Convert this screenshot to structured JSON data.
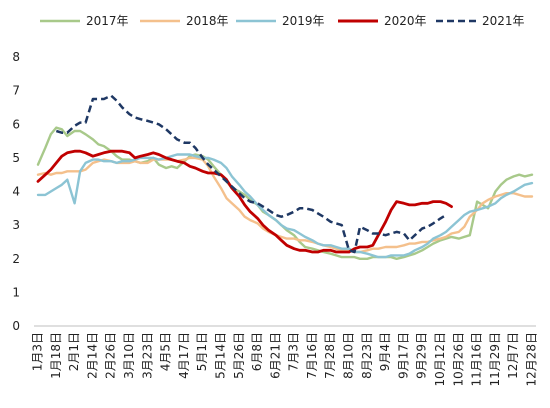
{
  "chart_data": {
    "type": "line",
    "title": "",
    "xlabel": "",
    "ylabel": "",
    "ylim": [
      0,
      8
    ],
    "yticks": [
      "0",
      "1",
      "2",
      "3",
      "4",
      "5",
      "6",
      "7",
      "8"
    ],
    "grid": false,
    "legend_position": "top",
    "categories": [
      "1月3日",
      "1月18日",
      "2月1日",
      "2月14日",
      "2月26日",
      "3月10日",
      "3月23日",
      "4月5日",
      "4月17日",
      "5月1日",
      "5月14日",
      "5月26日",
      "6月8日",
      "6月21日",
      "7月3日",
      "7月16日",
      "7月28日",
      "8月10日",
      "8月23日",
      "9月4日",
      "9月17日",
      "9月29日",
      "10月12日",
      "10月26日",
      "11月16日",
      "11月29日",
      "12月7日",
      "12月28日"
    ],
    "series": [
      {
        "name": "2017年",
        "color": "#a8c98a",
        "dash": false,
        "x": [
          0,
          0.4,
          0.7,
          1.0,
          1.3,
          1.6,
          2.0,
          2.3,
          2.6,
          3.0,
          3.3,
          3.6,
          4.0,
          4.3,
          4.6,
          5.0,
          5.3,
          5.6,
          6.0,
          6.3,
          6.6,
          7.0,
          7.3,
          7.6,
          8.0,
          8.3,
          8.6,
          9.0,
          9.3,
          9.6,
          10.0,
          10.3,
          10.6,
          11.0,
          11.3,
          11.6,
          12.0,
          12.3,
          12.6,
          13.0,
          13.3,
          13.6,
          14.0,
          14.3,
          14.6,
          15.0,
          15.3,
          15.6,
          16.0,
          16.3,
          16.6,
          17.0,
          17.3,
          17.6,
          18.0,
          18.3,
          18.6,
          19.0,
          19.3,
          19.6,
          20.0,
          20.3,
          20.6,
          21.0,
          21.3,
          21.6,
          22.0,
          22.3,
          22.6,
          23.0,
          23.3,
          23.6,
          24.0,
          24.3,
          24.6,
          25.0,
          25.3,
          25.6,
          26.0,
          26.3,
          26.6,
          27.0
        ],
        "values": [
          4.8,
          5.3,
          5.7,
          5.9,
          5.85,
          5.65,
          5.8,
          5.8,
          5.7,
          5.55,
          5.4,
          5.35,
          5.2,
          5.05,
          4.95,
          4.95,
          4.9,
          4.85,
          4.9,
          5.0,
          4.8,
          4.7,
          4.75,
          4.7,
          4.9,
          5.05,
          5.1,
          5.05,
          4.95,
          4.75,
          4.5,
          4.3,
          4.1,
          4.0,
          3.9,
          3.75,
          3.6,
          3.4,
          3.3,
          3.15,
          3.0,
          2.85,
          2.7,
          2.5,
          2.35,
          2.3,
          2.25,
          2.2,
          2.15,
          2.1,
          2.05,
          2.05,
          2.05,
          2.0,
          2.0,
          2.05,
          2.05,
          2.05,
          2.05,
          2.0,
          2.05,
          2.1,
          2.15,
          2.25,
          2.35,
          2.45,
          2.55,
          2.6,
          2.65,
          2.6,
          2.65,
          2.7,
          3.7,
          3.6,
          3.5,
          4.0,
          4.2,
          4.35,
          4.45,
          4.5,
          4.45,
          4.5
        ]
      },
      {
        "name": "2018年",
        "color": "#f4c08c",
        "dash": false,
        "x": [
          0,
          0.4,
          0.7,
          1.0,
          1.3,
          1.6,
          2.0,
          2.3,
          2.6,
          3.0,
          3.3,
          3.6,
          4.0,
          4.3,
          4.6,
          5.0,
          5.3,
          5.6,
          6.0,
          6.3,
          6.6,
          7.0,
          7.3,
          7.6,
          8.0,
          8.3,
          8.6,
          9.0,
          9.3,
          9.6,
          10.0,
          10.3,
          10.6,
          11.0,
          11.3,
          11.6,
          12.0,
          12.3,
          12.6,
          13.0,
          13.3,
          13.6,
          14.0,
          14.3,
          14.6,
          15.0,
          15.3,
          15.6,
          16.0,
          16.3,
          16.6,
          17.0,
          17.3,
          17.6,
          18.0,
          18.3,
          18.6,
          19.0,
          19.3,
          19.6,
          20.0,
          20.3,
          20.6,
          21.0,
          21.3,
          21.6,
          22.0,
          22.3,
          22.6,
          23.0,
          23.3,
          23.6,
          24.0,
          24.3,
          24.6,
          25.0,
          25.3,
          25.6,
          26.0,
          26.3,
          26.6,
          27.0
        ],
        "values": [
          4.5,
          4.55,
          4.5,
          4.55,
          4.55,
          4.6,
          4.6,
          4.6,
          4.65,
          4.85,
          4.9,
          4.95,
          4.9,
          4.85,
          4.85,
          4.85,
          4.9,
          4.85,
          4.85,
          4.95,
          4.95,
          4.95,
          4.95,
          4.9,
          4.95,
          5.0,
          5.0,
          4.95,
          4.75,
          4.45,
          4.1,
          3.8,
          3.65,
          3.45,
          3.25,
          3.15,
          3.05,
          2.9,
          2.8,
          2.7,
          2.65,
          2.6,
          2.6,
          2.55,
          2.55,
          2.5,
          2.45,
          2.4,
          2.35,
          2.3,
          2.25,
          2.25,
          2.2,
          2.2,
          2.25,
          2.3,
          2.3,
          2.35,
          2.35,
          2.35,
          2.4,
          2.45,
          2.45,
          2.5,
          2.5,
          2.55,
          2.6,
          2.65,
          2.75,
          2.8,
          2.95,
          3.25,
          3.45,
          3.65,
          3.75,
          3.85,
          3.9,
          3.95,
          3.95,
          3.9,
          3.85,
          3.85
        ]
      },
      {
        "name": "2019年",
        "color": "#8cc4d4",
        "dash": false,
        "x": [
          0,
          0.4,
          0.7,
          1.0,
          1.3,
          1.6,
          2.0,
          2.3,
          2.6,
          3.0,
          3.3,
          3.6,
          4.0,
          4.3,
          4.6,
          5.0,
          5.3,
          5.6,
          6.0,
          6.3,
          6.6,
          7.0,
          7.3,
          7.6,
          8.0,
          8.3,
          8.6,
          9.0,
          9.3,
          9.6,
          10.0,
          10.3,
          10.6,
          11.0,
          11.3,
          11.6,
          12.0,
          12.3,
          12.6,
          13.0,
          13.3,
          13.6,
          14.0,
          14.3,
          14.6,
          15.0,
          15.3,
          15.6,
          16.0,
          16.3,
          16.6,
          17.0,
          17.3,
          17.6,
          18.0,
          18.3,
          18.6,
          19.0,
          19.3,
          19.6,
          20.0,
          20.3,
          20.6,
          21.0,
          21.3,
          21.6,
          22.0,
          22.3,
          22.6,
          23.0,
          23.3,
          23.6,
          24.0,
          24.3,
          24.6,
          25.0,
          25.3,
          25.6,
          26.0,
          26.3,
          26.6,
          27.0
        ],
        "values": [
          3.9,
          3.9,
          4.0,
          4.1,
          4.2,
          4.35,
          3.65,
          4.6,
          4.85,
          4.95,
          4.95,
          4.9,
          4.9,
          4.85,
          4.9,
          4.9,
          4.95,
          5.0,
          5.0,
          5.0,
          4.95,
          5.0,
          5.05,
          5.1,
          5.1,
          5.1,
          5.05,
          5.0,
          5.0,
          4.95,
          4.85,
          4.7,
          4.45,
          4.2,
          4.0,
          3.85,
          3.6,
          3.45,
          3.3,
          3.15,
          3.0,
          2.9,
          2.85,
          2.75,
          2.65,
          2.55,
          2.45,
          2.4,
          2.4,
          2.35,
          2.3,
          2.3,
          2.2,
          2.2,
          2.15,
          2.1,
          2.05,
          2.05,
          2.1,
          2.1,
          2.1,
          2.15,
          2.25,
          2.35,
          2.45,
          2.6,
          2.7,
          2.8,
          2.95,
          3.15,
          3.3,
          3.4,
          3.45,
          3.5,
          3.55,
          3.65,
          3.8,
          3.9,
          4.0,
          4.1,
          4.2,
          4.25
        ]
      },
      {
        "name": "2020年",
        "color": "#c00000",
        "dash": false,
        "x": [
          0,
          0.4,
          0.7,
          1.0,
          1.3,
          1.6,
          2.0,
          2.3,
          2.6,
          3.0,
          3.3,
          3.6,
          4.0,
          4.3,
          4.6,
          5.0,
          5.3,
          5.6,
          6.0,
          6.3,
          6.6,
          7.0,
          7.3,
          7.6,
          8.0,
          8.3,
          8.6,
          9.0,
          9.3,
          9.6,
          10.0,
          10.3,
          10.6,
          11.0,
          11.3,
          11.6,
          12.0,
          12.3,
          12.6,
          13.0,
          13.3,
          13.6,
          14.0,
          14.3,
          14.6,
          15.0,
          15.3,
          15.6,
          16.0,
          16.3,
          16.6,
          17.0,
          17.3,
          17.6,
          18.0,
          18.3,
          18.6,
          19.0,
          19.3,
          19.6,
          20.0,
          20.3,
          20.6,
          21.0,
          21.3,
          21.6,
          22.0,
          22.3,
          22.6
        ],
        "values": [
          4.3,
          4.5,
          4.65,
          4.85,
          5.05,
          5.15,
          5.2,
          5.2,
          5.15,
          5.05,
          5.1,
          5.15,
          5.2,
          5.2,
          5.2,
          5.15,
          5.0,
          5.05,
          5.1,
          5.15,
          5.1,
          5.0,
          4.95,
          4.9,
          4.85,
          4.75,
          4.7,
          4.6,
          4.55,
          4.55,
          4.5,
          4.35,
          4.1,
          3.85,
          3.6,
          3.4,
          3.2,
          3.0,
          2.85,
          2.7,
          2.55,
          2.4,
          2.3,
          2.25,
          2.25,
          2.2,
          2.2,
          2.25,
          2.25,
          2.2,
          2.2,
          2.2,
          2.3,
          2.35,
          2.35,
          2.4,
          2.7,
          3.1,
          3.45,
          3.7,
          3.65,
          3.6,
          3.6,
          3.65,
          3.65,
          3.7,
          3.7,
          3.65,
          3.55
        ]
      },
      {
        "name": "2021年",
        "color": "#1f3864",
        "dash": true,
        "x": [
          1.0,
          1.3,
          1.6,
          2.0,
          2.3,
          2.6,
          3.0,
          3.3,
          3.6,
          4.0,
          4.3,
          4.6,
          5.0,
          5.3,
          5.6,
          6.0,
          6.3,
          6.6,
          7.0,
          7.3,
          7.6,
          8.0,
          8.3,
          8.6,
          9.0,
          9.3,
          9.6,
          10.0,
          10.3,
          10.6,
          11.0,
          11.3,
          11.6,
          12.0,
          12.3,
          12.6,
          13.0,
          13.3,
          13.6,
          14.0,
          14.3,
          14.6,
          15.0,
          15.3,
          15.6,
          16.0,
          16.3,
          16.6,
          17.0,
          17.3,
          17.6,
          18.0,
          18.3,
          18.6,
          19.0,
          19.3,
          19.6,
          20.0,
          20.3,
          20.6,
          21.0,
          21.3,
          21.6,
          22.0,
          22.3
        ],
        "values": [
          5.8,
          5.75,
          5.75,
          5.95,
          6.05,
          6.05,
          6.75,
          6.75,
          6.75,
          6.85,
          6.7,
          6.5,
          6.3,
          6.2,
          6.15,
          6.1,
          6.05,
          6.0,
          5.85,
          5.7,
          5.55,
          5.45,
          5.45,
          5.3,
          5.0,
          4.8,
          4.65,
          4.45,
          4.3,
          4.15,
          3.95,
          3.8,
          3.7,
          3.65,
          3.55,
          3.45,
          3.3,
          3.25,
          3.3,
          3.4,
          3.5,
          3.5,
          3.45,
          3.35,
          3.25,
          3.1,
          3.05,
          3.0,
          2.25,
          2.2,
          2.95,
          2.85,
          2.75,
          2.75,
          2.7,
          2.75,
          2.8,
          2.75,
          2.55,
          2.7,
          2.9,
          2.95,
          3.05,
          3.2,
          3.3
        ]
      }
    ]
  }
}
